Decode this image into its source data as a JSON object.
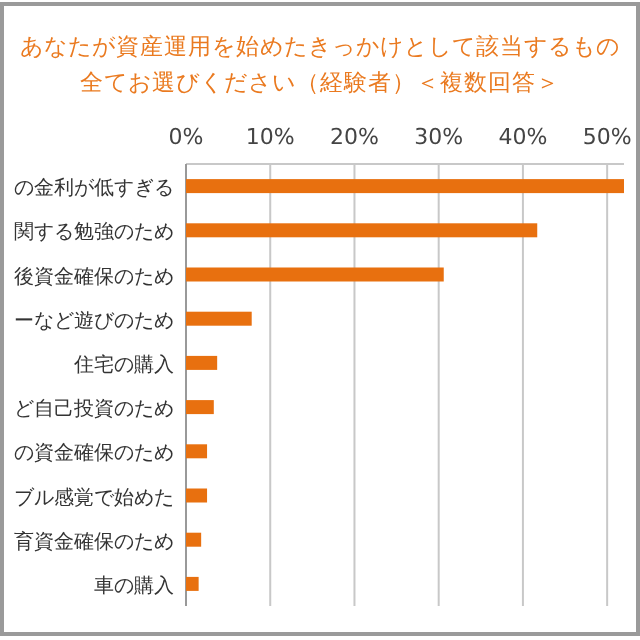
{
  "chart_data": {
    "type": "bar",
    "orientation": "horizontal",
    "title": "あなたが資産運用を始めたきっかけとして該当するもの",
    "subtitle": "全てお選びください（経験者）＜複数回答＞",
    "categories": [
      "の金利が低すぎる",
      "関する勉強のため",
      "後資金確保のため",
      "ーなど遊びのため",
      "住宅の購入",
      "ど自己投資のため",
      "の資金確保のため",
      "ブル感覚で始めた",
      "育資金確保のため",
      "車の購入"
    ],
    "values": [
      52,
      41.7,
      30.6,
      7.8,
      3.7,
      3.3,
      2.5,
      2.5,
      1.8,
      1.5
    ],
    "color": "#e8700f",
    "xlim": [
      0,
      52
    ],
    "xticks": [
      {
        "value": 0,
        "label": "0%"
      },
      {
        "value": 10,
        "label": "10%"
      },
      {
        "value": 20,
        "label": "20%"
      },
      {
        "value": 30,
        "label": "30%"
      },
      {
        "value": 40,
        "label": "40%"
      },
      {
        "value": 50,
        "label": "50%"
      }
    ],
    "grid": "x"
  }
}
